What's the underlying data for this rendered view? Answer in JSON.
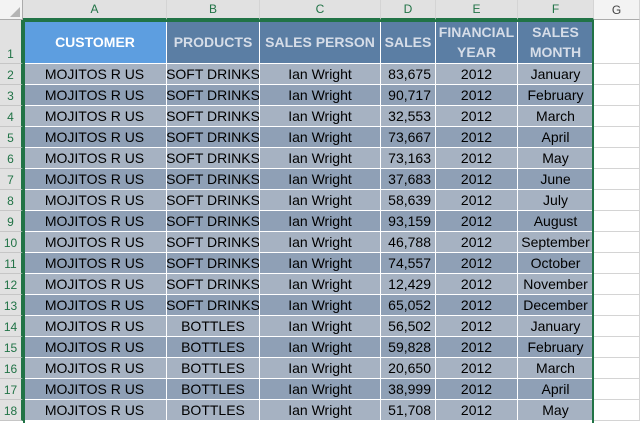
{
  "column_headers": [
    "A",
    "B",
    "C",
    "D",
    "E",
    "F",
    "G"
  ],
  "row_numbers": [
    "1",
    "2",
    "3",
    "4",
    "5",
    "6",
    "7",
    "8",
    "9",
    "10",
    "11",
    "12",
    "13",
    "14",
    "15",
    "16",
    "17",
    "18"
  ],
  "table": {
    "headers": [
      "CUSTOMER",
      "PRODUCTS",
      "SALES PERSON",
      "SALES",
      "FINANCIAL YEAR",
      "SALES MONTH"
    ],
    "rows": [
      [
        "MOJITOS R US",
        "SOFT DRINKS",
        "Ian Wright",
        "83,675",
        "2012",
        "January"
      ],
      [
        "MOJITOS R US",
        "SOFT DRINKS",
        "Ian Wright",
        "90,717",
        "2012",
        "February"
      ],
      [
        "MOJITOS R US",
        "SOFT DRINKS",
        "Ian Wright",
        "32,553",
        "2012",
        "March"
      ],
      [
        "MOJITOS R US",
        "SOFT DRINKS",
        "Ian Wright",
        "73,667",
        "2012",
        "April"
      ],
      [
        "MOJITOS R US",
        "SOFT DRINKS",
        "Ian Wright",
        "73,163",
        "2012",
        "May"
      ],
      [
        "MOJITOS R US",
        "SOFT DRINKS",
        "Ian Wright",
        "37,683",
        "2012",
        "June"
      ],
      [
        "MOJITOS R US",
        "SOFT DRINKS",
        "Ian Wright",
        "58,639",
        "2012",
        "July"
      ],
      [
        "MOJITOS R US",
        "SOFT DRINKS",
        "Ian Wright",
        "93,159",
        "2012",
        "August"
      ],
      [
        "MOJITOS R US",
        "SOFT DRINKS",
        "Ian Wright",
        "46,788",
        "2012",
        "September"
      ],
      [
        "MOJITOS R US",
        "SOFT DRINKS",
        "Ian Wright",
        "74,557",
        "2012",
        "October"
      ],
      [
        "MOJITOS R US",
        "SOFT DRINKS",
        "Ian Wright",
        "12,429",
        "2012",
        "November"
      ],
      [
        "MOJITOS R US",
        "SOFT DRINKS",
        "Ian Wright",
        "65,052",
        "2012",
        "December"
      ],
      [
        "MOJITOS R US",
        "BOTTLES",
        "Ian Wright",
        "56,502",
        "2012",
        "January"
      ],
      [
        "MOJITOS R US",
        "BOTTLES",
        "Ian Wright",
        "59,828",
        "2012",
        "February"
      ],
      [
        "MOJITOS R US",
        "BOTTLES",
        "Ian Wright",
        "20,650",
        "2012",
        "March"
      ],
      [
        "MOJITOS R US",
        "BOTTLES",
        "Ian Wright",
        "38,999",
        "2012",
        "April"
      ],
      [
        "MOJITOS R US",
        "BOTTLES",
        "Ian Wright",
        "51,708",
        "2012",
        "May"
      ]
    ]
  },
  "colors": {
    "header_fill": "#5b7ea4",
    "active_header_fill": "#5d9ee0",
    "band_light": "#a6b2c2",
    "band_dark": "#8fa0b6",
    "selection_border": "#217346"
  }
}
